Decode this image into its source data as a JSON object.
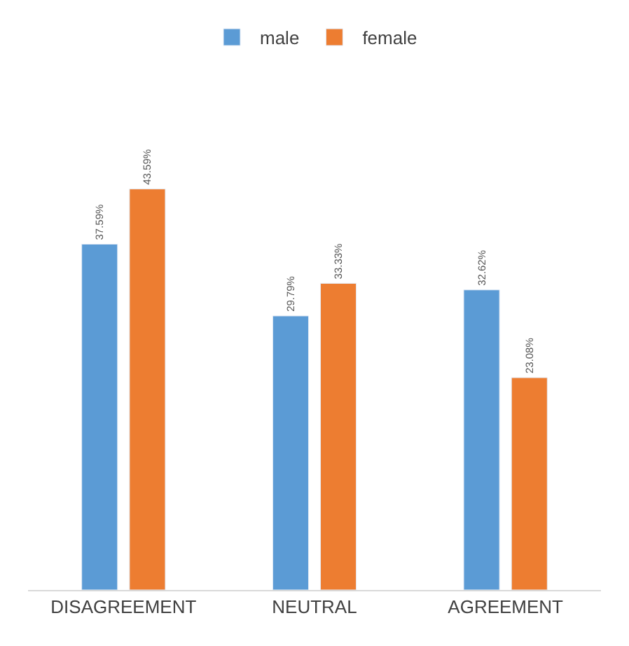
{
  "chart_data": {
    "type": "bar",
    "categories": [
      "DISAGREEMENT",
      "NEUTRAL",
      "AGREEMENT"
    ],
    "series": [
      {
        "name": "male",
        "color": "#5b9bd5",
        "values": [
          37.59,
          29.79,
          32.62
        ],
        "value_labels": [
          "37.59%",
          "29.79%",
          "32.62%"
        ]
      },
      {
        "name": "female",
        "color": "#ed7d31",
        "values": [
          43.59,
          33.33,
          23.08
        ],
        "value_labels": [
          "43.59%",
          "33.33%",
          "23.08%"
        ]
      }
    ],
    "legend": "top"
  }
}
